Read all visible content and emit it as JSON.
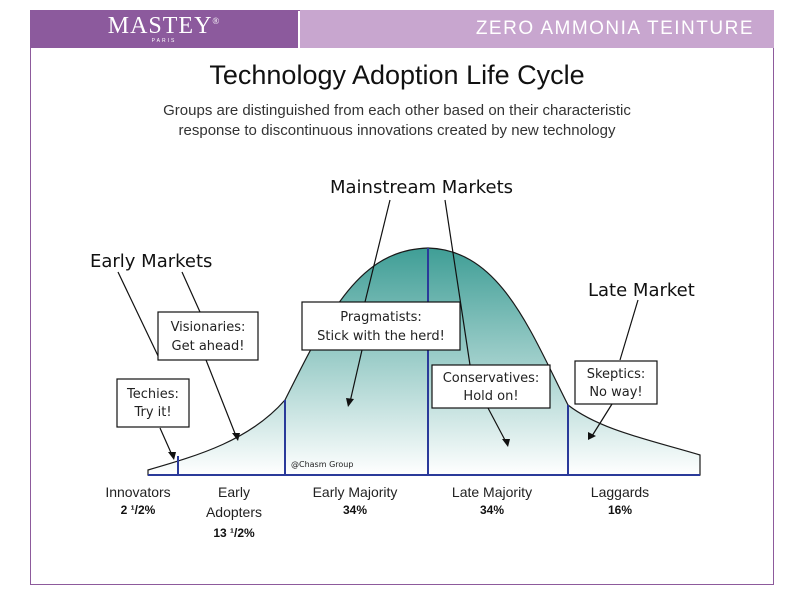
{
  "header": {
    "brand": "MASTEY",
    "brand_mark": "®",
    "brand_sub": "PARIS",
    "product": "ZERO AMMONIA TEINTURE"
  },
  "diagram": {
    "title": "Technology Adoption Life Cycle",
    "subtitle_line1": "Groups are distinguished from each other based on their characteristic",
    "subtitle_line2": "response to discontinuous innovations created by new technology",
    "markets": {
      "early": "Early Markets",
      "mainstream": "Mainstream Markets",
      "late": "Late Market"
    },
    "callouts": {
      "techies": [
        "Techies:",
        "Try it!"
      ],
      "visionaries": [
        "Visionaries:",
        "Get ahead!"
      ],
      "pragmatists": [
        "Pragmatists:",
        "Stick with the herd!"
      ],
      "conservatives": [
        "Conservatives:",
        "Hold on!"
      ],
      "skeptics": [
        "Skeptics:",
        "No way!"
      ]
    },
    "copyright": "@Chasm Group",
    "colors": {
      "fill_top": "#3f9e96",
      "fill_bottom": "#ffffff",
      "divider": "#2a3a9a",
      "outline": "#1a1a1a"
    }
  },
  "segments": [
    {
      "name": [
        "Innovators"
      ],
      "pct": "2 ¹/2%"
    },
    {
      "name": [
        "Early",
        "Adopters"
      ],
      "pct": "13 ¹/2%"
    },
    {
      "name": [
        "Early Majority"
      ],
      "pct": "34%"
    },
    {
      "name": [
        "Late Majority"
      ],
      "pct": "34%"
    },
    {
      "name": [
        "Laggards"
      ],
      "pct": "16%"
    }
  ]
}
